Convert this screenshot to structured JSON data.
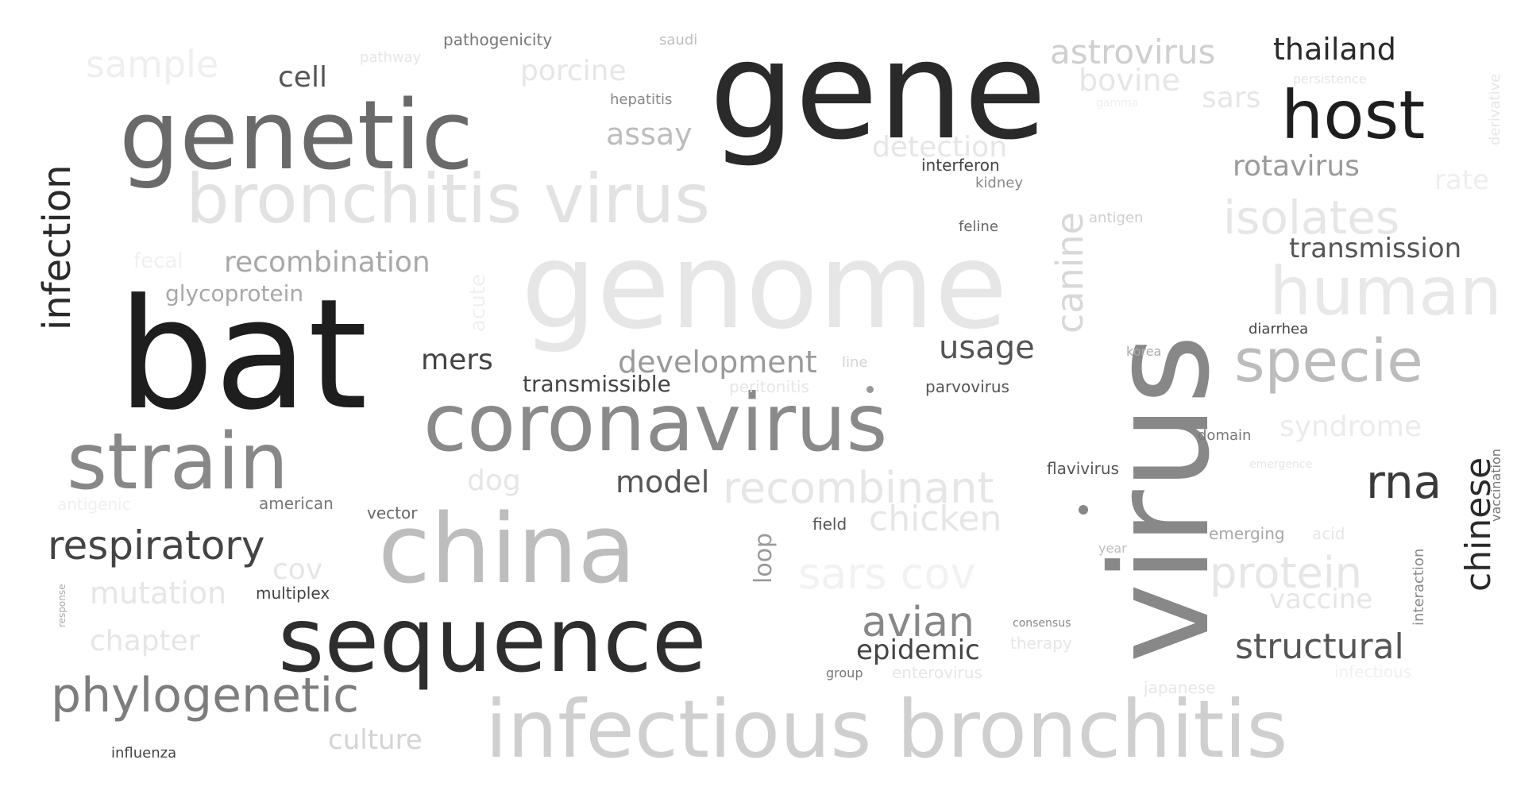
{
  "words": [
    {
      "text": "virus",
      "color": "#888888"
    },
    {
      "text": "bat",
      "color": "#1e1e1e"
    },
    {
      "text": "gene",
      "color": "#2a2a2a"
    },
    {
      "text": "genome",
      "color": "#e6e6e6"
    },
    {
      "text": "genetic",
      "color": "#6a6a6a"
    },
    {
      "text": "coronavirus",
      "color": "#8a8a8a"
    },
    {
      "text": "china",
      "color": "#bdbdbd"
    },
    {
      "text": "sequence",
      "color": "#2e2e2e"
    },
    {
      "text": "infectious bronchitis",
      "color": "#cfcfcf"
    },
    {
      "text": "bronchitis virus",
      "color": "#e2e2e2"
    },
    {
      "text": "strain",
      "color": "#888888"
    },
    {
      "text": "host",
      "color": "#1e1e1e"
    },
    {
      "text": "human",
      "color": "#e8e8e8"
    },
    {
      "text": "specie",
      "color": "#bcbcbc"
    },
    {
      "text": "phylogenetic",
      "color": "#7d7d7d"
    },
    {
      "text": "recombinant",
      "color": "#e6e6e6"
    },
    {
      "text": "infection",
      "color": "#2a2a2a"
    },
    {
      "text": "respiratory",
      "color": "#444444"
    },
    {
      "text": "isolates",
      "color": "#e6e6e6"
    },
    {
      "text": "protein",
      "color": "#e6e6e6"
    },
    {
      "text": "sars cov",
      "color": "#f2f2f2"
    },
    {
      "text": "rna",
      "color": "#3a3a3a"
    },
    {
      "text": "structural",
      "color": "#555555"
    },
    {
      "text": "avian",
      "color": "#888888"
    },
    {
      "text": "canine",
      "color": "#d8d8d8"
    },
    {
      "text": "chinese",
      "color": "#2a2a2a"
    },
    {
      "text": "astrovirus",
      "color": "#cfcfcf"
    },
    {
      "text": "thailand",
      "color": "#2a2a2a"
    },
    {
      "text": "chicken",
      "color": "#e6e6e6"
    },
    {
      "text": "development",
      "color": "#9a9a9a"
    },
    {
      "text": "recombination",
      "color": "#a8a8a8"
    },
    {
      "text": "usage",
      "color": "#555555"
    },
    {
      "text": "sample",
      "color": "#efefef"
    },
    {
      "text": "rotavirus",
      "color": "#9a9a9a"
    },
    {
      "text": "transmission",
      "color": "#555555"
    },
    {
      "text": "epidemic",
      "color": "#444444"
    },
    {
      "text": "syndrome",
      "color": "#ebebeb"
    },
    {
      "text": "vaccine",
      "color": "#e6e6e6"
    },
    {
      "text": "detection",
      "color": "#e6e6e6"
    },
    {
      "text": "porcine",
      "color": "#e6e6e6"
    },
    {
      "text": "bovine",
      "color": "#e6e6e6"
    },
    {
      "text": "mutation",
      "color": "#e6e6e6"
    },
    {
      "text": "model",
      "color": "#555555"
    },
    {
      "text": "chapter",
      "color": "#e6e6e6"
    },
    {
      "text": "culture",
      "color": "#d4d4d4"
    },
    {
      "text": "assay",
      "color": "#bdbdbd"
    },
    {
      "text": "loop",
      "color": "#9a9a9a"
    },
    {
      "text": "cell",
      "color": "#555555"
    },
    {
      "text": "mers",
      "color": "#444444"
    },
    {
      "text": "sars",
      "color": "#e6e6e6"
    },
    {
      "text": "dog",
      "color": "#e6e6e6"
    },
    {
      "text": "cov",
      "color": "#e6e6e6"
    },
    {
      "text": "glycoprotein",
      "color": "#a8a8a8"
    },
    {
      "text": "transmissible",
      "color": "#444444"
    },
    {
      "text": "rate",
      "color": "#eeeeee"
    },
    {
      "text": "acute",
      "color": "#f0f0f0"
    },
    {
      "text": "fecal",
      "color": "#f0f0f0"
    },
    {
      "text": "pathogenicity",
      "color": "#777777"
    },
    {
      "text": "hepatitis",
      "color": "#888888"
    },
    {
      "text": "interferon",
      "color": "#444444"
    },
    {
      "text": "kidney",
      "color": "#888888"
    },
    {
      "text": "feline",
      "color": "#666666"
    },
    {
      "text": "antigen",
      "color": "#cfcfcf"
    },
    {
      "text": "diarrhea",
      "color": "#444444"
    },
    {
      "text": "korea",
      "color": "#a8a8a8"
    },
    {
      "text": "parvovirus",
      "color": "#555555"
    },
    {
      "text": "peritonitis",
      "color": "#e6e6e6"
    },
    {
      "text": "domain",
      "color": "#777777"
    },
    {
      "text": "flavivirus",
      "color": "#555555"
    },
    {
      "text": "emerging",
      "color": "#a8a8a8"
    },
    {
      "text": "acid",
      "color": "#e6e6e6"
    },
    {
      "text": "interaction",
      "color": "#888888"
    },
    {
      "text": "vaccination",
      "color": "#777777"
    },
    {
      "text": "field",
      "color": "#555555"
    },
    {
      "text": "american",
      "color": "#777777"
    },
    {
      "text": "vector",
      "color": "#666666"
    },
    {
      "text": "multiplex",
      "color": "#444444"
    },
    {
      "text": "influenza",
      "color": "#444444"
    },
    {
      "text": "therapy",
      "color": "#e6e6e6"
    },
    {
      "text": "enterovirus",
      "color": "#e6e6e6"
    },
    {
      "text": "japanese",
      "color": "#e6e6e6"
    },
    {
      "text": "infectious",
      "color": "#f0f0f0"
    },
    {
      "text": "consensus",
      "color": "#888888"
    },
    {
      "text": "group",
      "color": "#777777"
    },
    {
      "text": "saudi",
      "color": "#bdbdbd"
    },
    {
      "text": "pathway",
      "color": "#e6e6e6"
    },
    {
      "text": "persistence",
      "color": "#e6e6e6"
    },
    {
      "text": "derivative",
      "color": "#e6e6e6"
    },
    {
      "text": "gamma",
      "color": "#f0f0f0"
    },
    {
      "text": "year",
      "color": "#bdbdbd"
    },
    {
      "text": "line",
      "color": "#d4d4d4"
    },
    {
      "text": "antigenic",
      "color": "#f0f0f0"
    },
    {
      "text": "emergence",
      "color": "#e6e6e6"
    },
    {
      "text": "response",
      "color": "#a8a8a8"
    }
  ]
}
